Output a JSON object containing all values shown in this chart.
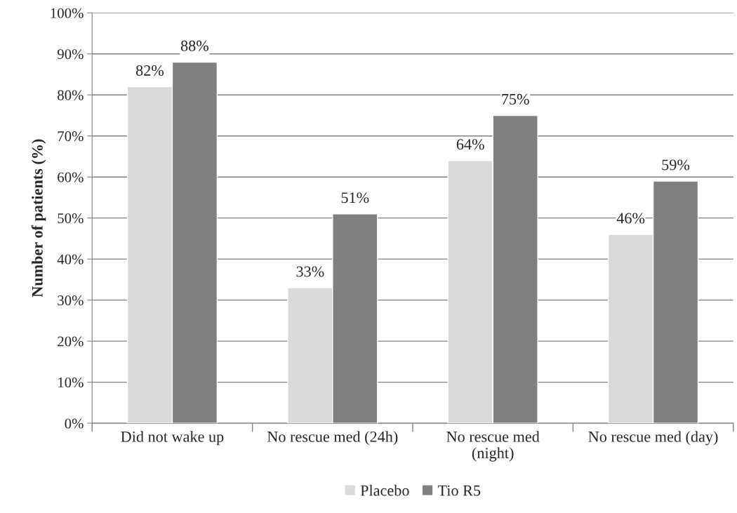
{
  "chart_data": {
    "type": "bar",
    "ylabel": "Number of patients (%)",
    "categories": [
      "Did not wake up",
      "No rescue med (24h)",
      "No rescue med\n(night)",
      "No rescue med (day)"
    ],
    "series": [
      {
        "name": "Placebo",
        "color": "#d9d9d9",
        "values": [
          82,
          33,
          64,
          46
        ],
        "value_labels": [
          "82%",
          "33%",
          "64%",
          "46%"
        ]
      },
      {
        "name": "Tio R5",
        "color": "#808080",
        "values": [
          88,
          51,
          75,
          59
        ],
        "value_labels": [
          "88%",
          "51%",
          "75%",
          "59%"
        ]
      }
    ],
    "ylim": [
      0,
      100
    ],
    "yticks": [
      {
        "value": 0,
        "label": "0%"
      },
      {
        "value": 10,
        "label": "10%"
      },
      {
        "value": 20,
        "label": "20%"
      },
      {
        "value": 30,
        "label": "30%"
      },
      {
        "value": 40,
        "label": "40%"
      },
      {
        "value": 50,
        "label": "50%"
      },
      {
        "value": 60,
        "label": "60%"
      },
      {
        "value": 70,
        "label": "70%"
      },
      {
        "value": 80,
        "label": "80%"
      },
      {
        "value": 90,
        "label": "90%"
      },
      {
        "value": 100,
        "label": "100%"
      }
    ],
    "grid": "y",
    "legend": "bottom"
  }
}
